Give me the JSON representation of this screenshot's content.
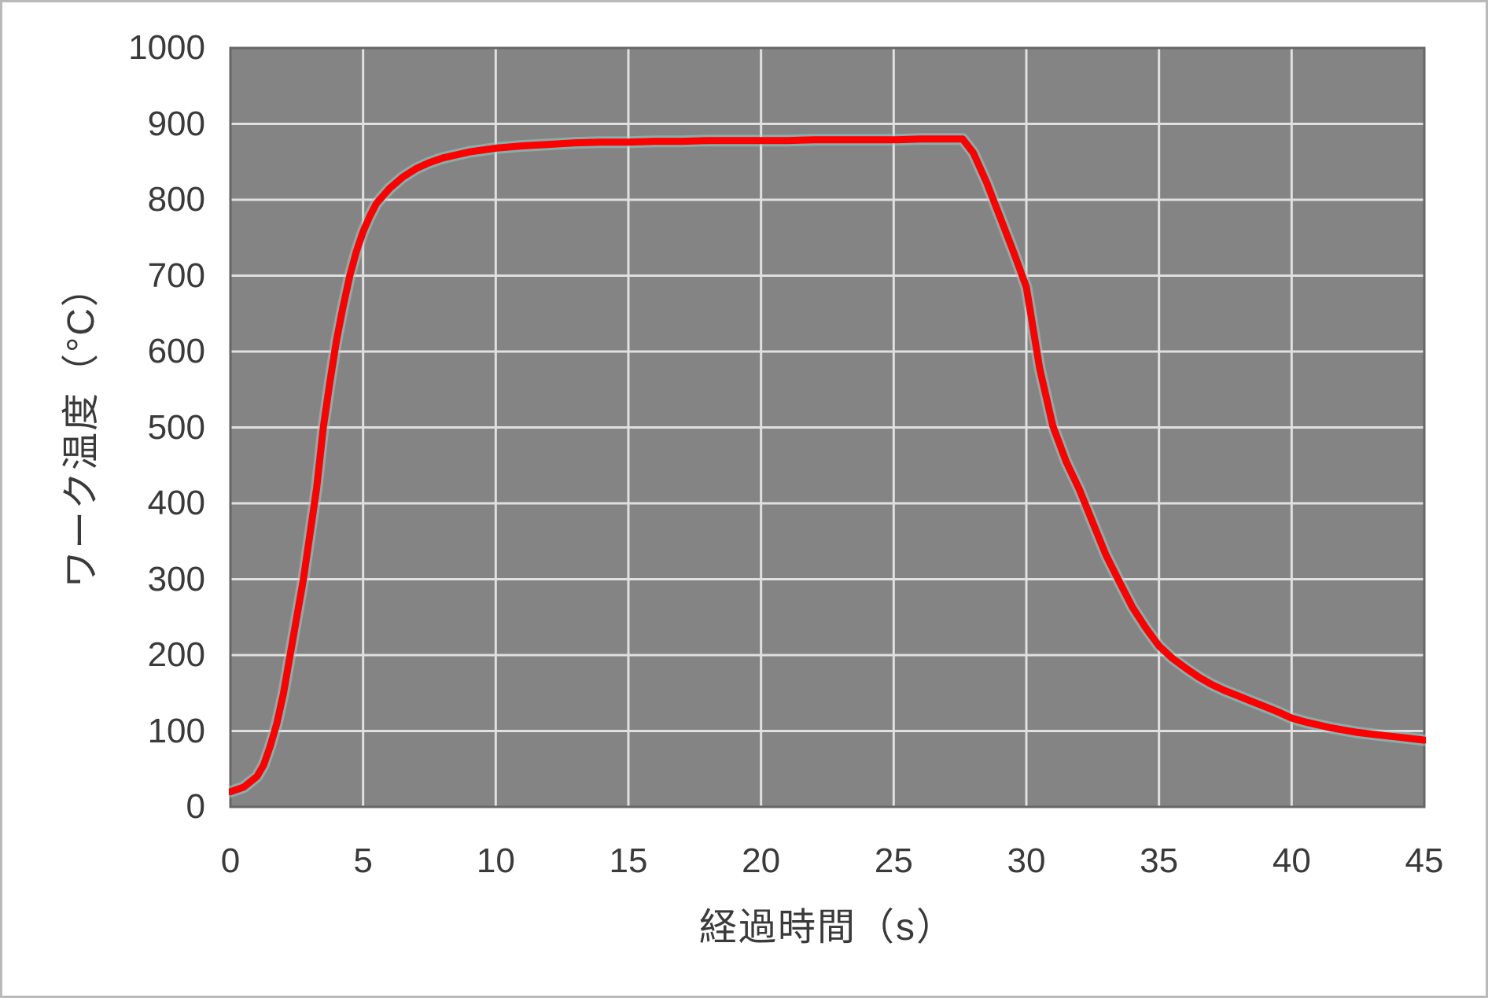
{
  "chart_data": {
    "type": "line",
    "title": "",
    "xlabel": "経過時間（s）",
    "ylabel": "ワーク温度（°C）",
    "x_ticks": [
      "0",
      "5",
      "10",
      "15",
      "20",
      "25",
      "30",
      "35",
      "40",
      "45"
    ],
    "x_tick_values": [
      0,
      5,
      10,
      15,
      20,
      25,
      30,
      35,
      40,
      45
    ],
    "y_ticks": [
      "0",
      "100",
      "200",
      "300",
      "400",
      "500",
      "600",
      "700",
      "800",
      "900",
      "1000"
    ],
    "y_tick_values": [
      0,
      100,
      200,
      300,
      400,
      500,
      600,
      700,
      800,
      900,
      1000
    ],
    "xlim": [
      0,
      45
    ],
    "ylim": [
      0,
      1000
    ],
    "grid": true,
    "legend_position": "none",
    "plot_background": "#848484",
    "plot_border_color": "#666666",
    "gridline_color": "#e0e0e0",
    "series": [
      {
        "name": "ワーク温度",
        "color": "#fe0000",
        "halo_color": "#8fd6ce",
        "points": [
          [
            0,
            20
          ],
          [
            0.5,
            26
          ],
          [
            1,
            40
          ],
          [
            1.25,
            55
          ],
          [
            1.5,
            80
          ],
          [
            1.75,
            110
          ],
          [
            2,
            150
          ],
          [
            2.25,
            200
          ],
          [
            2.5,
            250
          ],
          [
            2.75,
            300
          ],
          [
            3,
            360
          ],
          [
            3.25,
            420
          ],
          [
            3.5,
            500
          ],
          [
            3.75,
            560
          ],
          [
            4,
            615
          ],
          [
            4.25,
            660
          ],
          [
            4.5,
            700
          ],
          [
            4.75,
            732
          ],
          [
            5,
            758
          ],
          [
            5.25,
            778
          ],
          [
            5.5,
            795
          ],
          [
            6,
            815
          ],
          [
            6.5,
            830
          ],
          [
            7,
            841
          ],
          [
            7.5,
            849
          ],
          [
            8,
            855
          ],
          [
            9,
            863
          ],
          [
            10,
            868
          ],
          [
            11,
            871
          ],
          [
            12,
            873
          ],
          [
            13,
            875
          ],
          [
            14,
            876
          ],
          [
            15,
            876
          ],
          [
            16,
            877
          ],
          [
            17,
            877
          ],
          [
            18,
            878
          ],
          [
            19,
            878
          ],
          [
            20,
            878
          ],
          [
            21,
            878
          ],
          [
            22,
            879
          ],
          [
            23,
            879
          ],
          [
            24,
            879
          ],
          [
            25,
            879
          ],
          [
            26,
            880
          ],
          [
            27,
            880
          ],
          [
            27.6,
            880
          ],
          [
            28,
            862
          ],
          [
            28.5,
            823
          ],
          [
            29,
            778
          ],
          [
            29.5,
            733
          ],
          [
            30,
            685
          ],
          [
            30.5,
            578
          ],
          [
            31,
            502
          ],
          [
            31.5,
            455
          ],
          [
            32,
            418
          ],
          [
            32.5,
            375
          ],
          [
            33,
            332
          ],
          [
            33.5,
            297
          ],
          [
            34,
            263
          ],
          [
            34.5,
            236
          ],
          [
            35,
            212
          ],
          [
            35.5,
            196
          ],
          [
            36,
            183
          ],
          [
            36.5,
            171
          ],
          [
            37,
            161
          ],
          [
            37.5,
            153
          ],
          [
            38,
            146
          ],
          [
            38.5,
            139
          ],
          [
            39,
            132
          ],
          [
            39.5,
            125
          ],
          [
            40,
            117
          ],
          [
            40.5,
            112
          ],
          [
            41,
            108
          ],
          [
            41.5,
            104
          ],
          [
            42,
            101
          ],
          [
            42.5,
            98
          ],
          [
            43,
            96
          ],
          [
            43.5,
            94
          ],
          [
            44,
            92
          ],
          [
            44.5,
            90
          ],
          [
            45,
            88
          ]
        ]
      }
    ]
  },
  "frame": {
    "background": "#ffffff",
    "border_color": "#b9b9b9"
  }
}
